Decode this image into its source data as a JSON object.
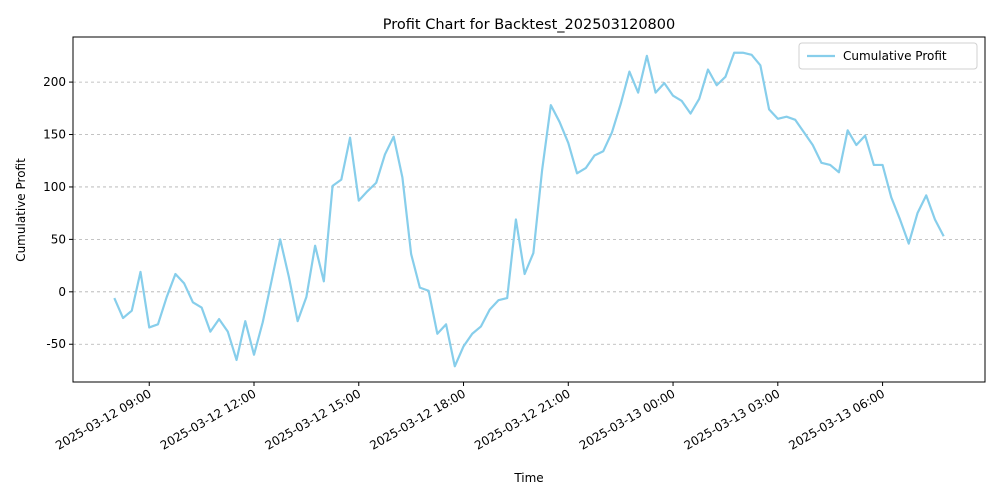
{
  "chart_data": {
    "type": "line",
    "title": "Profit Chart for Backtest_202503120800",
    "xlabel": "Time",
    "ylabel": "Cumulative Profit",
    "x": [
      "2025-03-12 08:00",
      "2025-03-12 08:15",
      "2025-03-12 08:30",
      "2025-03-12 08:45",
      "2025-03-12 09:00",
      "2025-03-12 09:15",
      "2025-03-12 09:30",
      "2025-03-12 09:45",
      "2025-03-12 10:00",
      "2025-03-12 10:15",
      "2025-03-12 10:30",
      "2025-03-12 10:45",
      "2025-03-12 11:00",
      "2025-03-12 11:15",
      "2025-03-12 11:30",
      "2025-03-12 11:45",
      "2025-03-12 12:00",
      "2025-03-12 12:15",
      "2025-03-12 12:30",
      "2025-03-12 12:45",
      "2025-03-12 13:00",
      "2025-03-12 13:15",
      "2025-03-12 13:30",
      "2025-03-12 13:45",
      "2025-03-12 14:00",
      "2025-03-12 14:15",
      "2025-03-12 14:30",
      "2025-03-12 14:45",
      "2025-03-12 15:00",
      "2025-03-12 15:15",
      "2025-03-12 15:30",
      "2025-03-12 15:45",
      "2025-03-12 16:00",
      "2025-03-12 16:15",
      "2025-03-12 16:30",
      "2025-03-12 16:45",
      "2025-03-12 17:00",
      "2025-03-12 17:15",
      "2025-03-12 17:30",
      "2025-03-12 17:45",
      "2025-03-12 18:00",
      "2025-03-12 18:15",
      "2025-03-12 18:30",
      "2025-03-12 18:45",
      "2025-03-12 19:00",
      "2025-03-12 19:15",
      "2025-03-12 19:30",
      "2025-03-12 19:45",
      "2025-03-12 20:00",
      "2025-03-12 20:15",
      "2025-03-12 20:30",
      "2025-03-12 20:45",
      "2025-03-12 21:00",
      "2025-03-12 21:15",
      "2025-03-12 21:30",
      "2025-03-12 21:45",
      "2025-03-12 22:00",
      "2025-03-12 22:15",
      "2025-03-12 22:30",
      "2025-03-12 22:45",
      "2025-03-12 23:00",
      "2025-03-12 23:15",
      "2025-03-12 23:30",
      "2025-03-12 23:45",
      "2025-03-13 00:00",
      "2025-03-13 00:15",
      "2025-03-13 00:30",
      "2025-03-13 00:45",
      "2025-03-13 01:00",
      "2025-03-13 01:15",
      "2025-03-13 01:30",
      "2025-03-13 01:45",
      "2025-03-13 02:00",
      "2025-03-13 02:15",
      "2025-03-13 02:30",
      "2025-03-13 02:45",
      "2025-03-13 03:00",
      "2025-03-13 03:15",
      "2025-03-13 03:30",
      "2025-03-13 03:45",
      "2025-03-13 04:00",
      "2025-03-13 04:15",
      "2025-03-13 04:30",
      "2025-03-13 04:45",
      "2025-03-13 05:00",
      "2025-03-13 05:15",
      "2025-03-13 05:30",
      "2025-03-13 05:45",
      "2025-03-13 06:00",
      "2025-03-13 06:15",
      "2025-03-13 06:30",
      "2025-03-13 06:45",
      "2025-03-13 07:00",
      "2025-03-13 07:15",
      "2025-03-13 07:30",
      "2025-03-13 07:45"
    ],
    "series": [
      {
        "name": "Cumulative Profit",
        "color": "#87ceeb",
        "values": [
          -6,
          -25,
          -18,
          19,
          -34,
          -31,
          -5,
          17,
          8,
          -10,
          -15,
          -38,
          -26,
          -38,
          -65,
          -28,
          -60,
          -29,
          10,
          50,
          14,
          -28,
          -5,
          44,
          10,
          101,
          107,
          147,
          87,
          96,
          104,
          131,
          148,
          109,
          36,
          4,
          1,
          -40,
          -31,
          -71,
          -52,
          -40,
          -33,
          -17,
          -8,
          -6,
          69,
          17,
          37,
          116,
          178,
          162,
          142,
          113,
          118,
          130,
          134,
          152,
          179,
          210,
          190,
          225,
          190,
          199,
          187,
          182,
          170,
          184,
          212,
          197,
          205,
          228,
          228,
          226,
          216,
          174,
          165,
          167,
          164,
          152,
          140,
          123,
          121,
          114,
          154,
          140,
          149,
          121,
          121,
          90,
          69,
          46,
          75,
          92,
          69,
          53
        ]
      }
    ],
    "xlim": [
      "2025-03-12 06:49",
      "2025-03-13 08:56"
    ],
    "xticks": [
      "2025-03-12 09:00",
      "2025-03-12 12:00",
      "2025-03-12 15:00",
      "2025-03-12 18:00",
      "2025-03-12 21:00",
      "2025-03-13 00:00",
      "2025-03-13 03:00",
      "2025-03-13 06:00"
    ],
    "ylim": [
      -86,
      243
    ],
    "yticks": [
      -50,
      0,
      50,
      100,
      150,
      200
    ],
    "grid": true,
    "legend": "upper right"
  }
}
